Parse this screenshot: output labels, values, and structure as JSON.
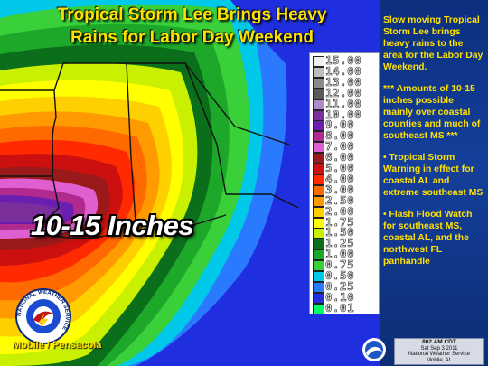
{
  "title": {
    "line1": "Tropical Storm Lee Brings Heavy",
    "line2": "Rains for Labor Day Weekend"
  },
  "legend": {
    "entries": [
      {
        "label": "15.00",
        "color": "#f0f0f0"
      },
      {
        "label": "14.00",
        "color": "#bdbdbd"
      },
      {
        "label": "13.00",
        "color": "#8a8a8a"
      },
      {
        "label": "12.00",
        "color": "#5a5a5a"
      },
      {
        "label": "11.00",
        "color": "#b18ac9"
      },
      {
        "label": "10.00",
        "color": "#7b2f9b"
      },
      {
        "label": "9.00",
        "color": "#6a1fb0"
      },
      {
        "label": "8.00",
        "color": "#b12b8f"
      },
      {
        "label": "7.00",
        "color": "#e05fd0"
      },
      {
        "label": "6.00",
        "color": "#9a1a1a"
      },
      {
        "label": "5.00",
        "color": "#cc1010"
      },
      {
        "label": "4.00",
        "color": "#ff2a00"
      },
      {
        "label": "3.00",
        "color": "#ff6a00"
      },
      {
        "label": "2.50",
        "color": "#ff9a00"
      },
      {
        "label": "2.00",
        "color": "#ffd000"
      },
      {
        "label": "1.75",
        "color": "#ffff00"
      },
      {
        "label": "1.50",
        "color": "#c8f000"
      },
      {
        "label": "1.25",
        "color": "#0a6e1a"
      },
      {
        "label": "1.00",
        "color": "#1ea82a"
      },
      {
        "label": "0.75",
        "color": "#3ad03a"
      },
      {
        "label": "0.50",
        "color": "#00c8e8"
      },
      {
        "label": "0.25",
        "color": "#2a7aff"
      },
      {
        "label": "0.10",
        "color": "#1f2fe0"
      },
      {
        "label": "0.01",
        "color": "#00ff66"
      }
    ]
  },
  "map_label": "10-15 Inches",
  "side_text": {
    "p1": "Slow moving Tropical Storm Lee brings heavy rains to the area for the Labor Day Weekend.",
    "p2": "*** Amounts of 10-15 inches possible mainly over coastal counties and much of southeast MS ***",
    "p3": "• Tropical Storm Warning in effect for coastal AL and extreme southeast MS",
    "p4": "• Flash Flood Watch for southeast MS, coastal AL, and the northwest FL panhandle"
  },
  "logo_text": "NATIONAL WEATHER SERVICE",
  "office": "Mobile / Pensacola",
  "timestamp": {
    "time": "802 AM CDT",
    "date": "Sat Sep 3 2011",
    "agency": "National Weather Service",
    "location": "Mobile, AL"
  }
}
